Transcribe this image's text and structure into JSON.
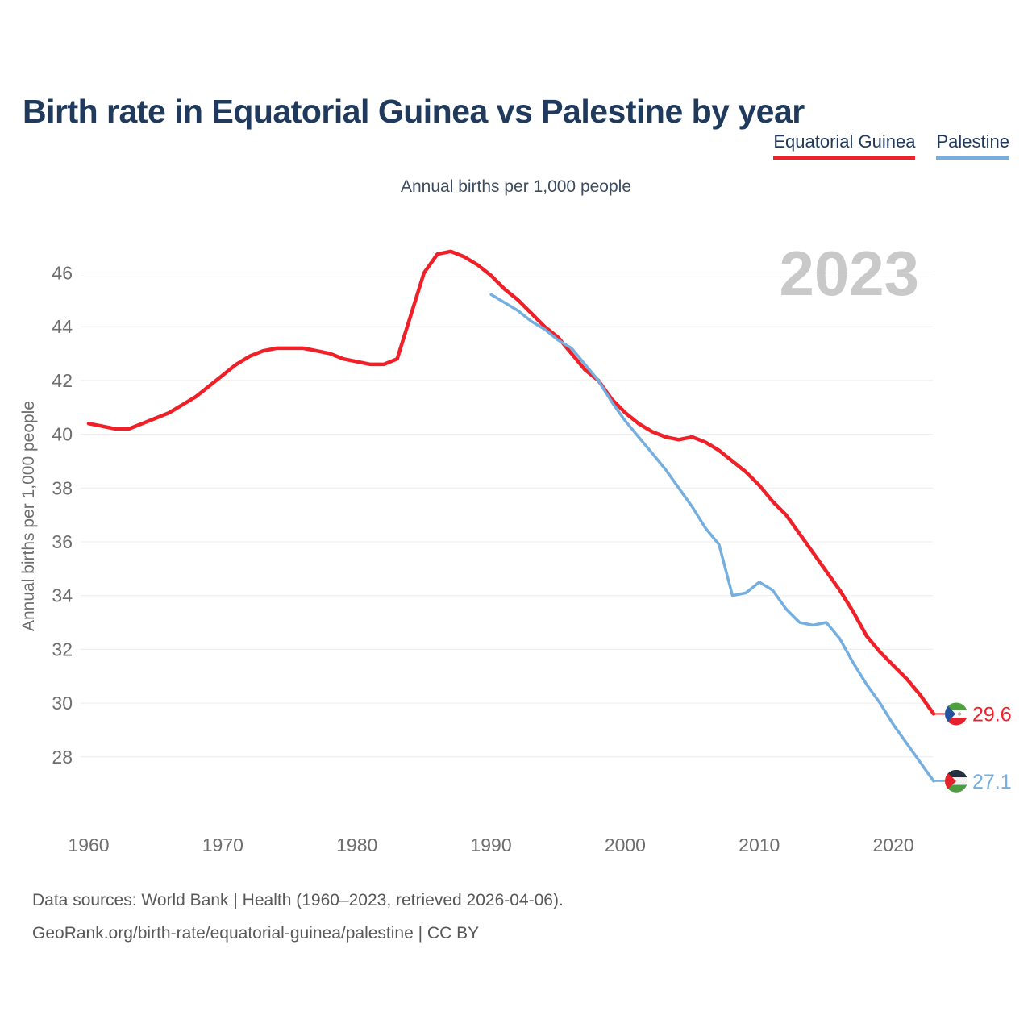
{
  "title": "Birth rate in Equatorial Guinea vs Palestine by year",
  "subtitle": "Annual births per 1,000 people",
  "watermark": "2023",
  "legend": {
    "items": [
      {
        "label": "Equatorial Guinea",
        "color": "#ef2028"
      },
      {
        "label": "Palestine",
        "color": "#75afe0"
      }
    ]
  },
  "footer": {
    "line1": "Data sources: World Bank | Health (1960–2023, retrieved 2026-04-06).",
    "line2": "GeoRank.org/birth-rate/equatorial-guinea/palestine | CC BY"
  },
  "colors": {
    "title_navy": "#1f3a5c",
    "tick_gray": "#6e6e6e",
    "footer_gray": "#585858",
    "watermark_gray": "#c9c9c9",
    "gridline": "#ececec",
    "equatorial_guinea_red": "#ef2028",
    "palestine_blue": "#75afe0"
  },
  "flags": {
    "equatorial_guinea": {
      "green": "#4f9e3f",
      "white": "#ffffff",
      "red": "#e6212b",
      "triangle_blue": "#2553a0",
      "emblem_gray": "#b9c0ae"
    },
    "palestine": {
      "black": "#242f40",
      "white": "#f2f2f2",
      "green": "#4e9c42",
      "triangle_red": "#e6212b"
    }
  },
  "chart_data": {
    "type": "line",
    "title": "Birth rate in Equatorial Guinea vs Palestine by year",
    "xlabel": "",
    "ylabel": "Annual births per 1,000 people",
    "xlim": [
      1960,
      2023
    ],
    "ylim": [
      26.5,
      47.5
    ],
    "x_ticks": [
      1960,
      1970,
      1980,
      1990,
      2000,
      2010,
      2020
    ],
    "y_ticks": [
      28,
      30,
      32,
      34,
      36,
      38,
      40,
      42,
      44,
      46
    ],
    "grid": "horizontal",
    "legend_position": "top-right",
    "series": [
      {
        "name": "Equatorial Guinea",
        "color": "#ef2028",
        "start_year": 1960,
        "end_label": "29.6",
        "flag": "equatorial_guinea",
        "values": [
          40.4,
          40.3,
          40.2,
          40.2,
          40.4,
          40.6,
          40.8,
          41.1,
          41.4,
          41.8,
          42.2,
          42.6,
          42.9,
          43.1,
          43.2,
          43.2,
          43.2,
          43.1,
          43.0,
          42.8,
          42.7,
          42.6,
          42.6,
          42.8,
          44.4,
          46.0,
          46.7,
          46.8,
          46.6,
          46.3,
          45.9,
          45.4,
          45.0,
          44.5,
          44.0,
          43.6,
          43.0,
          42.4,
          42.0,
          41.3,
          40.8,
          40.4,
          40.1,
          39.9,
          39.8,
          39.9,
          39.7,
          39.4,
          39.0,
          38.6,
          38.1,
          37.5,
          37.0,
          36.3,
          35.6,
          34.9,
          34.2,
          33.4,
          32.5,
          31.9,
          31.4,
          30.9,
          30.3,
          29.6
        ]
      },
      {
        "name": "Palestine",
        "color": "#75afe0",
        "start_year": 1990,
        "end_label": "27.1",
        "flag": "palestine",
        "values": [
          45.2,
          44.9,
          44.6,
          44.2,
          43.9,
          43.5,
          43.2,
          42.6,
          42.0,
          41.2,
          40.5,
          39.9,
          39.3,
          38.7,
          38.0,
          37.3,
          36.5,
          35.9,
          34.0,
          34.1,
          34.5,
          34.2,
          33.5,
          33.0,
          32.9,
          33.0,
          32.4,
          31.5,
          30.7,
          30.0,
          29.2,
          28.5,
          27.8,
          27.1
        ]
      }
    ]
  }
}
